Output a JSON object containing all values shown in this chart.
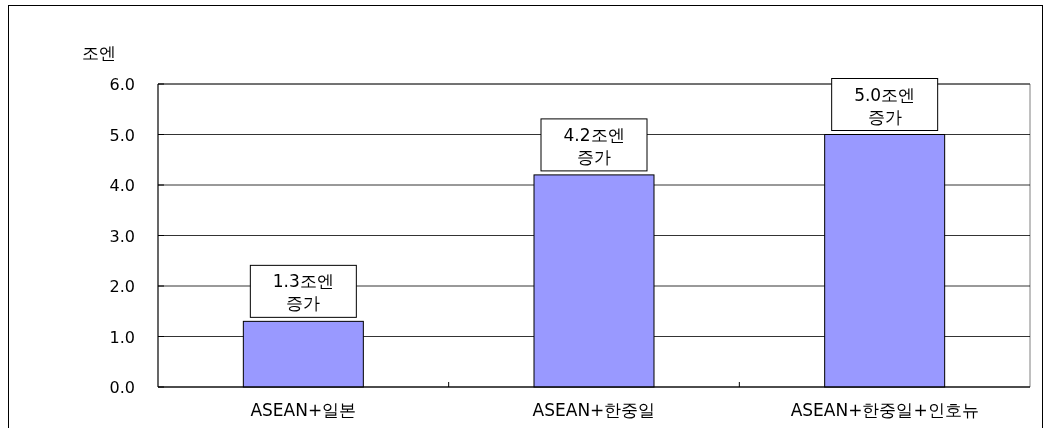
{
  "chart_data": {
    "type": "bar",
    "ylabel": "조엔",
    "categories": [
      "ASEAN+일본",
      "ASEAN+한중일",
      "ASEAN+한중일+인호뉴"
    ],
    "values": [
      1.3,
      4.2,
      5.0
    ],
    "color": "#9999ff",
    "value_labels": [
      "1.3조엔 증가",
      "4.2조엔 증가",
      "5.0조엔 증가"
    ],
    "ylim": [
      0,
      6
    ],
    "yticks": [
      {
        "value": 0,
        "label": "0.0"
      },
      {
        "value": 1,
        "label": "1.0"
      },
      {
        "value": 2,
        "label": "2.0"
      },
      {
        "value": 3,
        "label": "3.0"
      },
      {
        "value": 4,
        "label": "4.0"
      },
      {
        "value": 5,
        "label": "5.0"
      },
      {
        "value": 6,
        "label": "6.0"
      }
    ],
    "grid": "y"
  }
}
